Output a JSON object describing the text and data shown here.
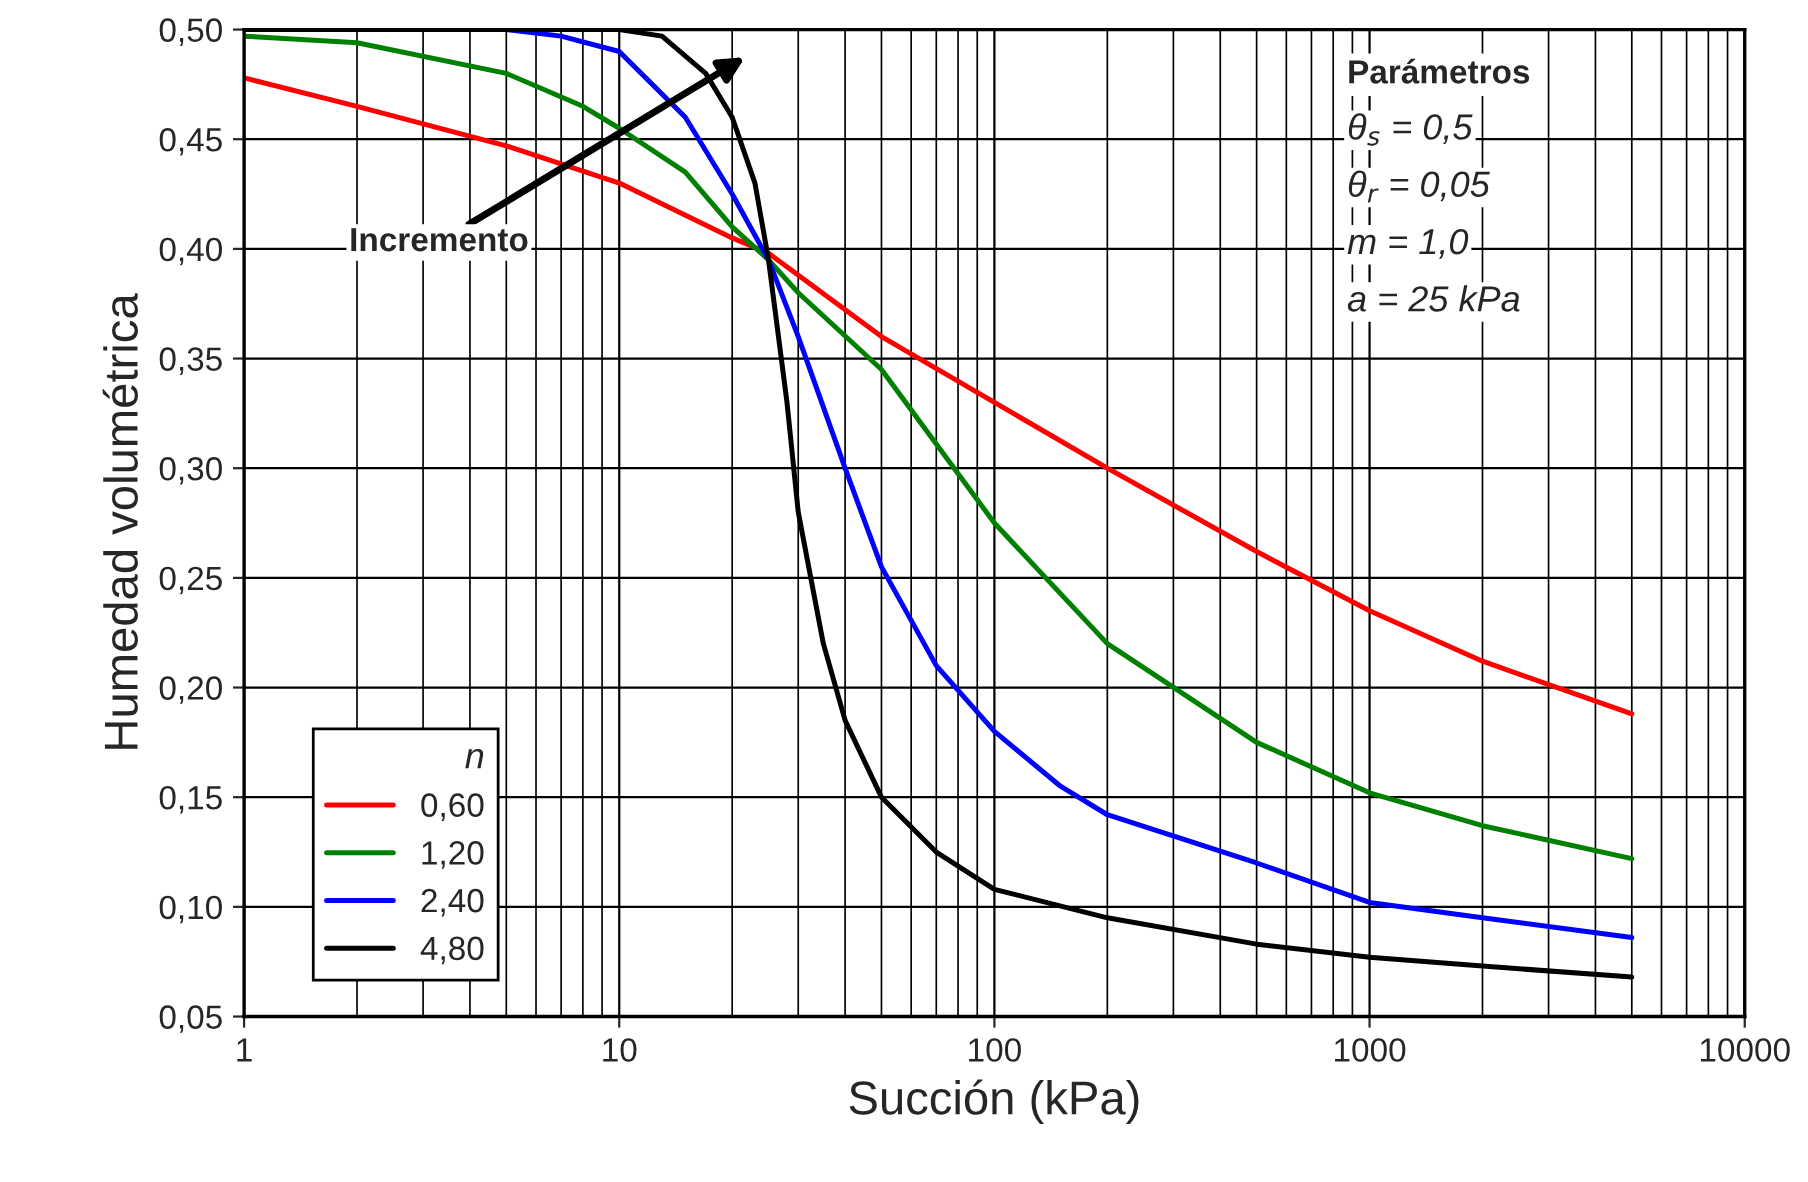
{
  "chart_data": {
    "type": "line",
    "xlabel": "Succión (kPa)",
    "ylabel": "Humedad volumétrica",
    "log": "x",
    "grid": true,
    "legend": "bottom left",
    "legend_title": "n",
    "line_style": "solid",
    "marker": "none",
    "xlim": [
      1,
      10000
    ],
    "xticks": [
      1,
      10,
      100,
      1000,
      10000
    ],
    "ylim": [
      0.05,
      0.5
    ],
    "yticks": [
      {
        "value": 0.05,
        "label": "0,05"
      },
      {
        "value": 0.1,
        "label": "0,10"
      },
      {
        "value": 0.15,
        "label": "0,15"
      },
      {
        "value": 0.2,
        "label": "0,20"
      },
      {
        "value": 0.25,
        "label": "0,25"
      },
      {
        "value": 0.3,
        "label": "0,30"
      },
      {
        "value": 0.35,
        "label": "0,35"
      },
      {
        "value": 0.4,
        "label": "0,40"
      },
      {
        "value": 0.45,
        "label": "0,45"
      },
      {
        "value": 0.5,
        "label": "0,50"
      }
    ],
    "annotations": [
      "Incremento",
      "Parámetros",
      "θ$_{s}$ = 0,5",
      "θ$_{r}$ = 0,05",
      "m = 1,0",
      "a = 25 kPa"
    ],
    "series": [
      {
        "name": "0,60",
        "color": "#ff0000",
        "x": [
          1,
          2,
          5,
          10,
          20,
          25,
          50,
          100,
          200,
          500,
          1000,
          2000,
          5000
        ],
        "values": [
          0.478,
          0.465,
          0.447,
          0.43,
          0.405,
          0.398,
          0.36,
          0.33,
          0.3,
          0.262,
          0.235,
          0.212,
          0.188
        ]
      },
      {
        "name": "1,20",
        "color": "#008000",
        "x": [
          1,
          2,
          5,
          8,
          10,
          15,
          20,
          25,
          30,
          50,
          100,
          200,
          500,
          1000,
          2000,
          5000
        ],
        "values": [
          0.497,
          0.494,
          0.48,
          0.465,
          0.455,
          0.435,
          0.41,
          0.395,
          0.38,
          0.345,
          0.275,
          0.22,
          0.175,
          0.152,
          0.137,
          0.122
        ]
      },
      {
        "name": "2,40",
        "color": "#0000ff",
        "x": [
          1,
          5,
          7,
          10,
          15,
          20,
          25,
          30,
          40,
          50,
          70,
          100,
          150,
          200,
          500,
          1000,
          2000,
          5000
        ],
        "values": [
          0.5,
          0.5,
          0.497,
          0.49,
          0.46,
          0.425,
          0.395,
          0.36,
          0.3,
          0.255,
          0.21,
          0.18,
          0.155,
          0.142,
          0.12,
          0.102,
          0.095,
          0.086
        ]
      },
      {
        "name": "4,80",
        "color": "#000000",
        "x": [
          1,
          10,
          13,
          17,
          20,
          23,
          25,
          28,
          30,
          35,
          40,
          50,
          70,
          100,
          200,
          500,
          1000,
          2000,
          5000
        ],
        "values": [
          0.5,
          0.5,
          0.497,
          0.48,
          0.46,
          0.43,
          0.395,
          0.33,
          0.28,
          0.22,
          0.185,
          0.15,
          0.125,
          0.108,
          0.095,
          0.083,
          0.077,
          0.073,
          0.068
        ]
      }
    ]
  }
}
